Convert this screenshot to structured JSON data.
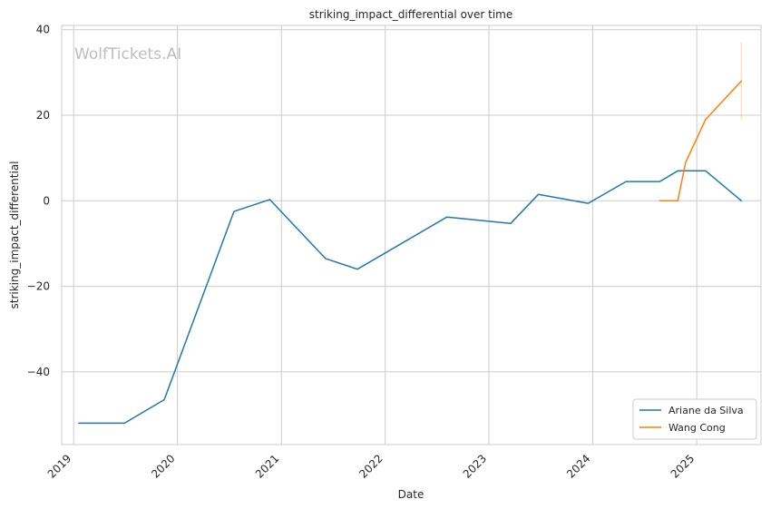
{
  "chart_data": {
    "type": "line",
    "title": "striking_impact_differential over time",
    "xlabel": "Date",
    "ylabel": "striking_impact_differential",
    "watermark": "WolfTickets.AI",
    "x_tick_labels": [
      "2019",
      "2020",
      "2021",
      "2022",
      "2023",
      "2024",
      "2025"
    ],
    "y_tick_labels": [
      "40",
      "20",
      "0",
      "−20",
      "−40"
    ],
    "y_ticks": [
      40,
      20,
      0,
      -20,
      -40
    ],
    "ylim": [
      -57,
      41
    ],
    "xlim": [
      "2018-11-20",
      "2025-08-15"
    ],
    "grid": true,
    "legend_position": "lower-right",
    "series": [
      {
        "name": "Ariane da Silva",
        "color": "#1f77b4",
        "points": [
          {
            "x": "2019-01-19",
            "y": -52
          },
          {
            "x": "2019-06-29",
            "y": -52
          },
          {
            "x": "2019-11-16",
            "y": -46.5
          },
          {
            "x": "2020-07-18",
            "y": -2.5
          },
          {
            "x": "2020-11-21",
            "y": 0.3
          },
          {
            "x": "2021-06-05",
            "y": -13.5
          },
          {
            "x": "2021-09-25",
            "y": -16
          },
          {
            "x": "2022-08-06",
            "y": -3.8
          },
          {
            "x": "2023-03-18",
            "y": -5.3
          },
          {
            "x": "2023-06-24",
            "y": 1.5
          },
          {
            "x": "2023-12-16",
            "y": -0.6
          },
          {
            "x": "2024-04-27",
            "y": 4.5
          },
          {
            "x": "2024-08-24",
            "y": 4.5
          },
          {
            "x": "2024-10-26",
            "y": 7
          },
          {
            "x": "2025-02-01",
            "y": 7
          },
          {
            "x": "2025-06-07",
            "y": 0
          }
        ]
      },
      {
        "name": "Wang Cong",
        "color": "#ff7f0e",
        "points": [
          {
            "x": "2024-08-24",
            "y": 0
          },
          {
            "x": "2024-10-26",
            "y": 0
          },
          {
            "x": "2024-11-23",
            "y": 9
          },
          {
            "x": "2025-02-01",
            "y": 19
          },
          {
            "x": "2025-06-07",
            "y": 28
          }
        ],
        "error_band": {
          "x": "2025-06-07",
          "low": 19,
          "high": 37
        }
      }
    ]
  }
}
